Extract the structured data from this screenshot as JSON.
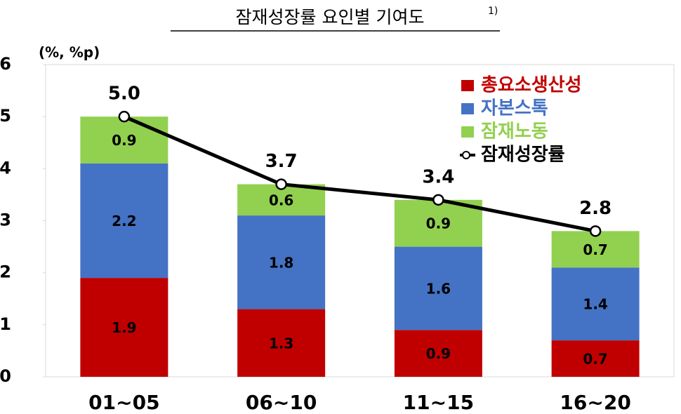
{
  "chart_data": {
    "type": "bar",
    "stacked": true,
    "title": "잠재성장률 요인별 기여도",
    "title_note": "1)",
    "y_unit_label": "(%, %p)",
    "categories": [
      "01~05",
      "06~10",
      "11~15",
      "16~20"
    ],
    "series": [
      {
        "name": "총요소생산성",
        "color": "#c00000",
        "values": [
          1.9,
          1.3,
          0.9,
          0.7
        ]
      },
      {
        "name": "자본스톡",
        "color": "#4472c4",
        "values": [
          2.2,
          1.8,
          1.6,
          1.4
        ]
      },
      {
        "name": "잠재노동",
        "color": "#92d050",
        "values": [
          0.9,
          0.6,
          0.9,
          0.7
        ]
      },
      {
        "name": "잠재성장률",
        "type": "line",
        "color": "#000000",
        "values": [
          5.0,
          3.7,
          3.4,
          2.8
        ],
        "value_labels": [
          "5.0",
          "3.7",
          "3.4",
          "2.8"
        ]
      }
    ],
    "ylim": [
      0,
      6
    ],
    "yticks": [
      0,
      1,
      2,
      3,
      4,
      5,
      6
    ],
    "legend": "top-right"
  }
}
